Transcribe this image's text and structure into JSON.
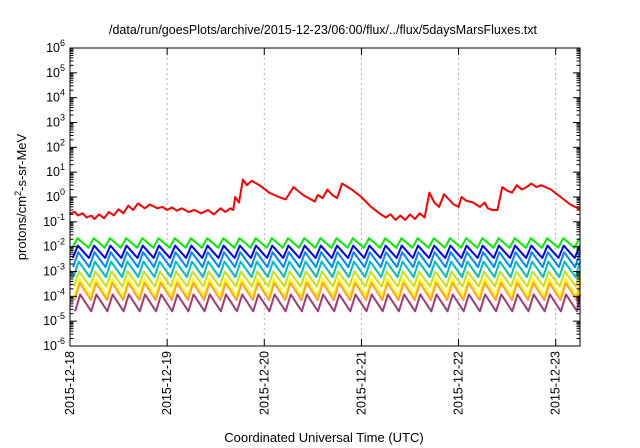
{
  "chart_data": {
    "type": "line",
    "title": "/data/run/goesPlots/archive/2015-12-23/06:00/flux/../flux/5daysMarsFluxes.txt",
    "xlabel": "Coordinated Universal Time (UTC)",
    "ylabel": {
      "base": "protons/cm",
      "sup": "2",
      "rest": "-s-sr-MeV"
    },
    "y_scale": "log",
    "ylim": [
      1e-06,
      1000000.0
    ],
    "xlim": [
      0,
      5.25
    ],
    "x_tick_labels": [
      "2015-12-18",
      "2015-12-19",
      "2015-12-20",
      "2015-12-21",
      "2015-12-22",
      "2015-12-23"
    ],
    "x_tick_values": [
      0,
      1,
      2,
      3,
      4,
      5
    ],
    "y_tick_exponents": [
      -6,
      -5,
      -4,
      -3,
      -2,
      -1,
      0,
      1,
      2,
      3,
      4,
      5,
      6
    ],
    "grid": true,
    "legend": "none",
    "series": [
      {
        "color": "#ff0000",
        "points": [
          [
            0.0,
            0.22
          ],
          [
            0.05,
            0.25
          ],
          [
            0.08,
            0.18
          ],
          [
            0.13,
            0.22
          ],
          [
            0.17,
            0.15
          ],
          [
            0.22,
            0.18
          ],
          [
            0.25,
            0.13
          ],
          [
            0.3,
            0.2
          ],
          [
            0.35,
            0.14
          ],
          [
            0.4,
            0.25
          ],
          [
            0.45,
            0.18
          ],
          [
            0.5,
            0.32
          ],
          [
            0.55,
            0.22
          ],
          [
            0.6,
            0.45
          ],
          [
            0.65,
            0.3
          ],
          [
            0.7,
            0.55
          ],
          [
            0.77,
            0.35
          ],
          [
            0.82,
            0.5
          ],
          [
            0.9,
            0.35
          ],
          [
            0.95,
            0.4
          ],
          [
            1.0,
            0.3
          ],
          [
            1.05,
            0.38
          ],
          [
            1.1,
            0.28
          ],
          [
            1.15,
            0.35
          ],
          [
            1.22,
            0.25
          ],
          [
            1.28,
            0.3
          ],
          [
            1.35,
            0.22
          ],
          [
            1.42,
            0.3
          ],
          [
            1.48,
            0.2
          ],
          [
            1.55,
            0.35
          ],
          [
            1.6,
            0.25
          ],
          [
            1.65,
            0.35
          ],
          [
            1.68,
            0.3
          ],
          [
            1.7,
            1.0
          ],
          [
            1.74,
            0.6
          ],
          [
            1.78,
            5.0
          ],
          [
            1.82,
            3.0
          ],
          [
            1.87,
            4.5
          ],
          [
            1.95,
            3.0
          ],
          [
            2.05,
            1.5
          ],
          [
            2.15,
            1.0
          ],
          [
            2.22,
            0.8
          ],
          [
            2.3,
            2.5
          ],
          [
            2.4,
            1.2
          ],
          [
            2.48,
            0.8
          ],
          [
            2.52,
            0.65
          ],
          [
            2.55,
            1.2
          ],
          [
            2.6,
            0.9
          ],
          [
            2.65,
            2.0
          ],
          [
            2.7,
            1.2
          ],
          [
            2.75,
            0.9
          ],
          [
            2.8,
            3.5
          ],
          [
            2.9,
            2.0
          ],
          [
            3.0,
            1.0
          ],
          [
            3.1,
            0.4
          ],
          [
            3.2,
            0.2
          ],
          [
            3.25,
            0.15
          ],
          [
            3.3,
            0.2
          ],
          [
            3.35,
            0.12
          ],
          [
            3.4,
            0.18
          ],
          [
            3.45,
            0.12
          ],
          [
            3.5,
            0.2
          ],
          [
            3.55,
            0.13
          ],
          [
            3.6,
            0.22
          ],
          [
            3.65,
            0.15
          ],
          [
            3.7,
            1.5
          ],
          [
            3.75,
            0.6
          ],
          [
            3.8,
            0.4
          ],
          [
            3.85,
            1.3
          ],
          [
            3.95,
            0.5
          ],
          [
            4.0,
            0.4
          ],
          [
            4.03,
            1.0
          ],
          [
            4.08,
            0.7
          ],
          [
            4.15,
            0.6
          ],
          [
            4.22,
            0.4
          ],
          [
            4.27,
            0.6
          ],
          [
            4.3,
            0.35
          ],
          [
            4.35,
            0.3
          ],
          [
            4.4,
            0.3
          ],
          [
            4.45,
            2.5
          ],
          [
            4.5,
            1.8
          ],
          [
            4.55,
            1.5
          ],
          [
            4.6,
            3.0
          ],
          [
            4.65,
            2.0
          ],
          [
            4.7,
            2.5
          ],
          [
            4.75,
            3.5
          ],
          [
            4.8,
            2.5
          ],
          [
            4.85,
            3.0
          ],
          [
            4.95,
            2.0
          ],
          [
            5.05,
            1.0
          ],
          [
            5.15,
            0.5
          ],
          [
            5.25,
            0.32
          ]
        ]
      },
      {
        "color": "#00ee00",
        "high": 0.022,
        "low": 0.009
      },
      {
        "color": "#0000ff",
        "high": 0.011,
        "low": 0.0035
      },
      {
        "color": "#0088ff",
        "high": 0.006,
        "low": 0.0015
      },
      {
        "color": "#00bfbf",
        "high": 0.0025,
        "low": 0.0006
      },
      {
        "color": "#c8e014",
        "high": 0.001,
        "low": 0.00025
      },
      {
        "color": "#ffff00",
        "high": 0.0005,
        "low": 0.0001
      },
      {
        "color": "#ffa040",
        "high": 0.00035,
        "low": 7e-05
      },
      {
        "color": "#a03c7c",
        "high": 0.00012,
        "low": 2.5e-05
      }
    ]
  }
}
